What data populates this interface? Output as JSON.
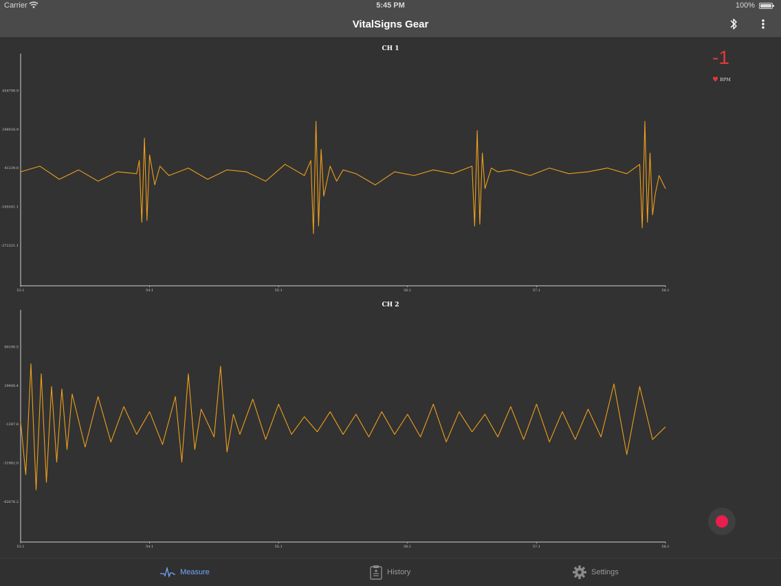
{
  "status_bar": {
    "carrier": "Carrier",
    "time": "5:45 PM",
    "battery": "100%"
  },
  "nav": {
    "title": "VitalSigns Gear",
    "icons": [
      "bluetooth-icon",
      "more-vertical-icon"
    ]
  },
  "heart_rate": {
    "value": "-1",
    "unit": "BPM",
    "color": "#e0393a"
  },
  "colors": {
    "trace": "#f0a01c",
    "record": "#e91e4f",
    "active_tab": "#6fa8ff"
  },
  "record_button": {
    "icon": "record-icon"
  },
  "tabs": [
    {
      "label": "Measure",
      "icon": "ecg-wave-icon",
      "active": true
    },
    {
      "label": "History",
      "icon": "clipboard-icon",
      "active": false
    },
    {
      "label": "Settings",
      "icon": "gear-icon",
      "active": false
    }
  ],
  "chart_data": [
    {
      "type": "line",
      "title": "CH 1",
      "x_ticks": [
        "53.1",
        "54.1",
        "55.1",
        "56.1",
        "57.1",
        "58.1"
      ],
      "y_ticks": [
        "454798.9",
        "248018.9",
        "41239.0",
        "-165541.1",
        "-372321.1"
      ],
      "xlim": [
        53.1,
        58.1
      ],
      "ylim": [
        -579101,
        661579
      ],
      "series": [
        {
          "color": "#f0a01c",
          "x": [
            53.1,
            53.25,
            53.4,
            53.55,
            53.7,
            53.85,
            54.0,
            54.02,
            54.04,
            54.06,
            54.08,
            54.1,
            54.14,
            54.18,
            54.25,
            54.4,
            54.55,
            54.7,
            54.85,
            55.0,
            55.15,
            55.3,
            55.35,
            55.37,
            55.39,
            55.41,
            55.43,
            55.45,
            55.5,
            55.55,
            55.6,
            55.7,
            55.85,
            56.0,
            56.15,
            56.3,
            56.45,
            56.6,
            56.62,
            56.64,
            56.66,
            56.68,
            56.7,
            56.75,
            56.8,
            56.9,
            57.05,
            57.2,
            57.35,
            57.5,
            57.65,
            57.8,
            57.9,
            57.92,
            57.94,
            57.96,
            57.98,
            58.0,
            58.02,
            58.05,
            58.1
          ],
          "y": [
            30000,
            60000,
            -10000,
            40000,
            -20000,
            30000,
            20000,
            90000,
            -240000,
            210000,
            -230000,
            120000,
            -40000,
            60000,
            10000,
            50000,
            -10000,
            40000,
            30000,
            -20000,
            70000,
            10000,
            90000,
            -300000,
            300000,
            -260000,
            150000,
            -100000,
            60000,
            -20000,
            40000,
            20000,
            -40000,
            30000,
            10000,
            40000,
            20000,
            60000,
            -260000,
            250000,
            -250000,
            130000,
            -60000,
            50000,
            30000,
            40000,
            10000,
            50000,
            20000,
            30000,
            50000,
            20000,
            70000,
            -270000,
            300000,
            -240000,
            130000,
            -200000,
            -90000,
            10000,
            -60000
          ]
        }
      ]
    },
    {
      "type": "line",
      "title": "CH 2",
      "x_ticks": [
        "53.1",
        "54.1",
        "55.1",
        "56.1",
        "57.1",
        "58.1"
      ],
      "y_ticks": [
        "60100.5",
        "29406.4",
        "-1287.6",
        "-31982.0",
        "-62676.2"
      ],
      "xlim": [
        53.1,
        58.1
      ],
      "ylim": [
        -93370,
        90794
      ],
      "series": [
        {
          "color": "#f0a01c",
          "x": [
            53.1,
            53.14,
            53.18,
            53.22,
            53.26,
            53.3,
            53.34,
            53.38,
            53.42,
            53.46,
            53.5,
            53.6,
            53.7,
            53.8,
            53.9,
            54.0,
            54.1,
            54.2,
            54.3,
            54.35,
            54.4,
            54.45,
            54.5,
            54.6,
            54.65,
            54.7,
            54.75,
            54.8,
            54.9,
            55.0,
            55.1,
            55.2,
            55.3,
            55.4,
            55.5,
            55.6,
            55.7,
            55.8,
            55.9,
            56.0,
            56.1,
            56.2,
            56.3,
            56.4,
            56.5,
            56.6,
            56.7,
            56.8,
            56.9,
            57.0,
            57.1,
            57.2,
            57.3,
            57.4,
            57.5,
            57.6,
            57.7,
            57.8,
            57.9,
            58.0,
            58.1
          ],
          "y": [
            2000,
            -40000,
            48000,
            -52000,
            40000,
            -46000,
            30000,
            -30000,
            28000,
            -20000,
            24000,
            -18000,
            22000,
            -14000,
            14000,
            -8000,
            10000,
            -16000,
            22000,
            -30000,
            40000,
            -20000,
            12000,
            -10000,
            46000,
            -22000,
            8000,
            -8000,
            20000,
            -12000,
            16000,
            -8000,
            6000,
            -6000,
            10000,
            -8000,
            8000,
            -10000,
            10000,
            -8000,
            8000,
            -10000,
            16000,
            -14000,
            10000,
            -6000,
            8000,
            -10000,
            14000,
            -12000,
            16000,
            -14000,
            10000,
            -12000,
            12000,
            -10000,
            32000,
            -24000,
            30000,
            -12000,
            -2000
          ]
        }
      ]
    }
  ]
}
